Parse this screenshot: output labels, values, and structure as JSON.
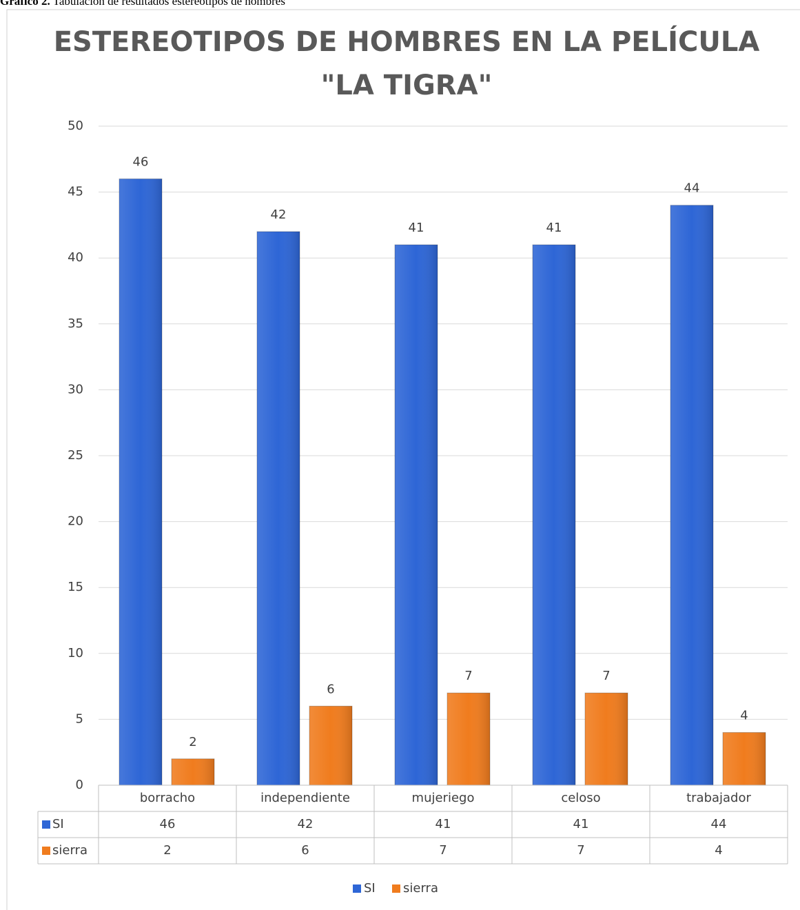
{
  "caption": {
    "label": "Gráfico 2.",
    "text": "Tabulación de resultados estereotipos de hombres"
  },
  "chart_data": {
    "type": "bar",
    "title": [
      "ESTEREOTIPOS DE HOMBRES EN LA PELÍCULA",
      "\"LA TIGRA\""
    ],
    "categories": [
      "borracho",
      "independiente",
      "mujeriego",
      "celoso",
      "trabajador"
    ],
    "series": [
      {
        "name": "SI",
        "color": "#2e66d6",
        "values": [
          46,
          42,
          41,
          41,
          44
        ]
      },
      {
        "name": "sierra",
        "color": "#f07c1e",
        "values": [
          2,
          6,
          7,
          7,
          4
        ]
      }
    ],
    "ylim": [
      0,
      50
    ],
    "yticks": [
      0,
      5,
      10,
      15,
      20,
      25,
      30,
      35,
      40,
      45,
      50
    ],
    "grid": true,
    "legend": "bottom",
    "data_table": true
  }
}
